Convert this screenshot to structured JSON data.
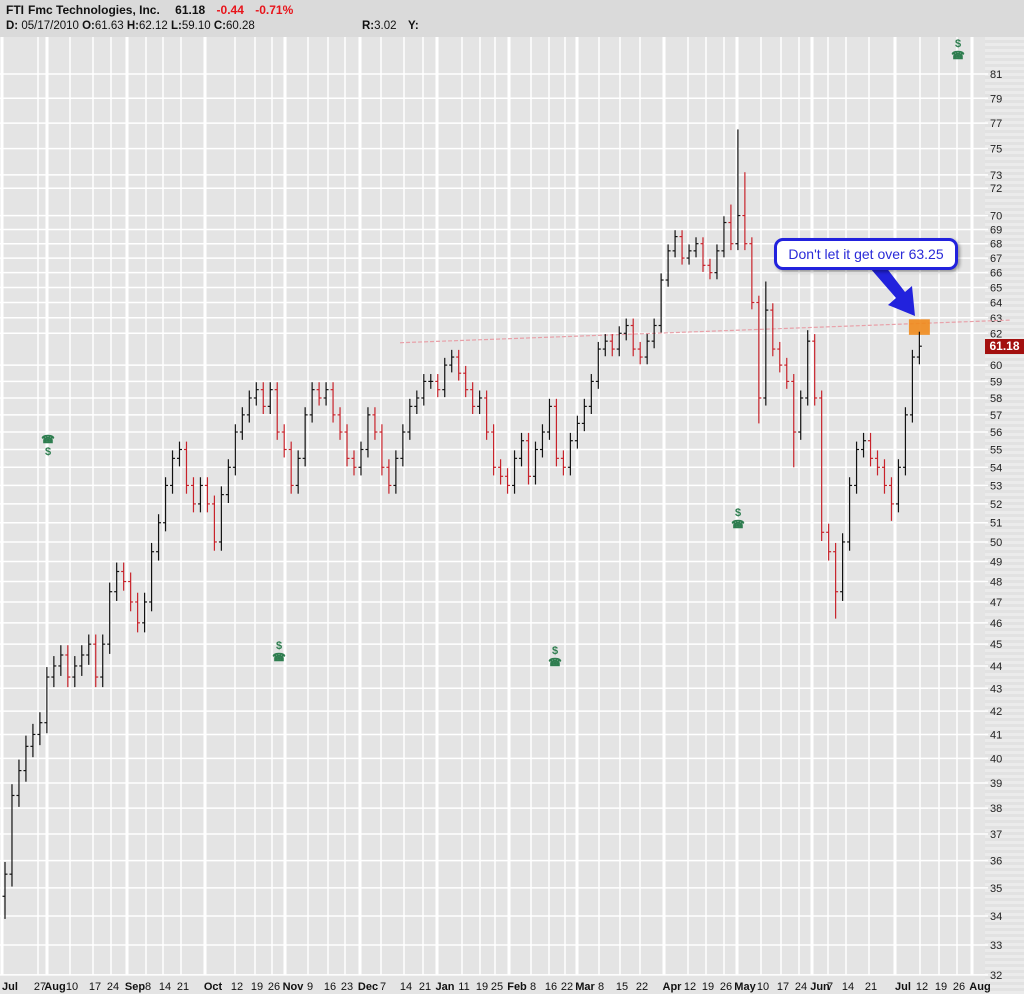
{
  "header": {
    "symbol": "FTI",
    "name": "Fmc Technologies, Inc.",
    "last": "61.18",
    "change": "-0.44",
    "change_pct": "-0.71%",
    "d_label": "D:",
    "date": "05/17/2010",
    "o_label": "O:",
    "open": "61.63",
    "h_label": "H:",
    "high": "62.12",
    "l_label": "L:",
    "low": "59.10",
    "c_label": "C:",
    "close": "60.28",
    "r_label": "R:",
    "r_value": "3.02",
    "y_label": "Y:"
  },
  "annotation": {
    "callout_text": "Don't let it get over 63.25",
    "current_price_label": "61.18"
  },
  "colors": {
    "up": "#111111",
    "down": "#c8232b",
    "trendline": "#e8a0a8",
    "highlight": "#f08a1c",
    "callout_border": "#2222dd",
    "price_box": "#a3100f",
    "event": "#2e7d4f"
  },
  "events": [
    {
      "icons": [
        "phone",
        "$"
      ]
    },
    {
      "icons": [
        "$",
        "phone"
      ]
    },
    {
      "icons": [
        "$",
        "phone"
      ]
    },
    {
      "icons": [
        "$",
        "phone"
      ]
    },
    {
      "icons": [
        "$",
        "phone"
      ]
    }
  ],
  "chart_data": {
    "type": "ohlc",
    "title": "FTI Fmc Technologies, Inc.",
    "scale": "log",
    "ylim": [
      32,
      81
    ],
    "yticks": [
      81,
      79,
      77,
      75,
      73,
      72,
      70,
      69,
      68,
      67,
      66,
      65,
      64,
      63,
      62,
      60,
      59,
      58,
      57,
      56,
      55,
      54,
      53,
      52,
      51,
      50,
      49,
      48,
      47,
      46,
      45,
      44,
      43,
      42,
      41,
      40,
      39,
      38,
      37,
      36,
      35,
      34,
      33,
      32
    ],
    "xticks": [
      {
        "label": "Jul",
        "month": true
      },
      {
        "label": "27"
      },
      {
        "label": "Aug",
        "month": true
      },
      {
        "label": "10"
      },
      {
        "label": "17"
      },
      {
        "label": "24"
      },
      {
        "label": "Sep",
        "month": true
      },
      {
        "label": "8"
      },
      {
        "label": "14"
      },
      {
        "label": "21"
      },
      {
        "label": "Oct",
        "month": true
      },
      {
        "label": "12"
      },
      {
        "label": "19"
      },
      {
        "label": "26"
      },
      {
        "label": "Nov",
        "month": true
      },
      {
        "label": "9"
      },
      {
        "label": "16"
      },
      {
        "label": "23"
      },
      {
        "label": "Dec",
        "month": true
      },
      {
        "label": "7"
      },
      {
        "label": "14"
      },
      {
        "label": "21"
      },
      {
        "label": "Jan",
        "month": true
      },
      {
        "label": "11"
      },
      {
        "label": "19"
      },
      {
        "label": "25"
      },
      {
        "label": "Feb",
        "month": true
      },
      {
        "label": "8"
      },
      {
        "label": "16"
      },
      {
        "label": "22"
      },
      {
        "label": "Mar",
        "month": true
      },
      {
        "label": "8"
      },
      {
        "label": "15"
      },
      {
        "label": "22"
      },
      {
        "label": "Apr",
        "month": true
      },
      {
        "label": "12"
      },
      {
        "label": "19"
      },
      {
        "label": "26"
      },
      {
        "label": "May",
        "month": true
      },
      {
        "label": "10"
      },
      {
        "label": "17"
      },
      {
        "label": "24"
      },
      {
        "label": "Jun",
        "month": true
      },
      {
        "label": "7"
      },
      {
        "label": "14"
      },
      {
        "label": "21"
      },
      {
        "label": "Jul",
        "month": true
      },
      {
        "label": "12"
      },
      {
        "label": "19"
      },
      {
        "label": "26"
      },
      {
        "label": "Aug",
        "month": true
      }
    ],
    "closes": [
      35.5,
      38.5,
      39.5,
      40.5,
      41,
      41.5,
      43.5,
      44,
      44.5,
      43.5,
      44,
      44.5,
      45,
      43.5,
      45,
      47.5,
      48.5,
      48,
      47,
      46,
      47,
      49.5,
      51,
      53,
      54.5,
      55,
      53,
      52,
      53,
      52,
      50,
      52.5,
      54,
      56,
      57,
      58,
      58.5,
      57.5,
      58.5,
      56,
      55,
      53,
      54.5,
      57,
      58.5,
      58,
      58.5,
      57,
      56,
      54.5,
      54,
      55,
      57,
      56,
      54,
      53,
      54.5,
      56,
      57.5,
      58,
      59,
      59,
      58.5,
      60,
      60.5,
      59.5,
      58.5,
      57.5,
      58,
      56,
      54,
      53.5,
      53,
      54.5,
      55.5,
      53.5,
      55,
      56,
      57.5,
      54.5,
      54,
      55.5,
      56.5,
      57.5,
      59,
      61,
      61.5,
      61,
      62,
      62.5,
      61,
      60.5,
      61.5,
      62.5,
      65.5,
      67.5,
      68.5,
      67,
      67.5,
      68,
      66.5,
      66,
      67.5,
      69.5,
      68,
      70,
      68,
      64,
      58,
      63.5,
      61,
      60,
      59,
      56,
      58,
      61.5,
      58,
      50.5,
      49.5,
      47.5,
      50,
      53,
      55,
      55.5,
      54.5,
      54,
      53,
      52,
      54,
      57,
      60.5,
      61.18
    ],
    "range_pad": 0.45,
    "high_overrides": {
      "104": 70.8,
      "105": 76.5,
      "106": 73.2,
      "109": 65.4,
      "115": 62.2,
      "131": 62.1
    },
    "low_overrides": {
      "0": 33.9,
      "108": 56.5,
      "113": 54,
      "119": 46.2,
      "127": 51.1
    },
    "trendline": {
      "from": {
        "bar": 56.6,
        "price": 61.4
      },
      "to": {
        "bar": 144,
        "price": 62.85
      }
    },
    "highlight_zone": {
      "bars": [
        129.5,
        132.5
      ],
      "price": [
        61.9,
        62.9
      ]
    }
  }
}
